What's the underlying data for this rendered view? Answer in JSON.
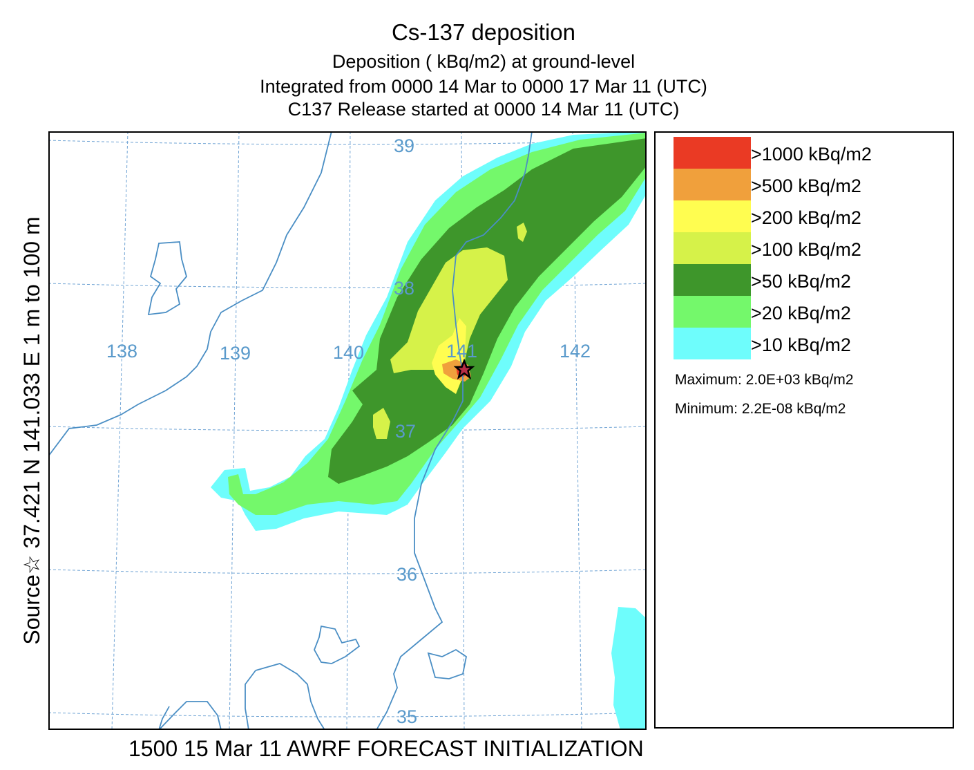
{
  "titles": {
    "main": "Cs-137 deposition",
    "line2": "Deposition  ( kBq/m2) at ground-level",
    "line3": "Integrated from 0000 14 Mar to 0000 17 Mar 11 (UTC)",
    "line4": "C137 Release started at 0000 14 Mar 11 (UTC)"
  },
  "side_label": "Source☆ 37.421  N 141.033  E     1 m to  100 m",
  "footer": "1500 15 Mar 11 AWRF FORECAST INITIALIZATION",
  "map": {
    "lon_labels": [
      "138",
      "139",
      "140",
      "141",
      "142"
    ],
    "lat_labels": [
      "39",
      "38",
      "37",
      "36",
      "35"
    ],
    "source_marker": "star-icon",
    "colors": {
      "grid": "#6fa3d4",
      "coast": "#4a8ec4",
      "frame": "#000000"
    }
  },
  "legend": {
    "items": [
      {
        "label": ">1000  kBq/m2",
        "color": "#ea3a24"
      },
      {
        "label": ">500  kBq/m2",
        "color": "#f0a03c"
      },
      {
        "label": ">200  kBq/m2",
        "color": "#fffd50"
      },
      {
        "label": ">100  kBq/m2",
        "color": "#d6f249"
      },
      {
        "label": ">50  kBq/m2",
        "color": "#3e962b"
      },
      {
        "label": ">20  kBq/m2",
        "color": "#74f86b"
      },
      {
        "label": ">10  kBq/m2",
        "color": "#6efdfc"
      }
    ],
    "maximum": "Maximum: 2.0E+03  kBq/m2",
    "minimum": "Minimum: 2.2E-08  kBq/m2"
  }
}
